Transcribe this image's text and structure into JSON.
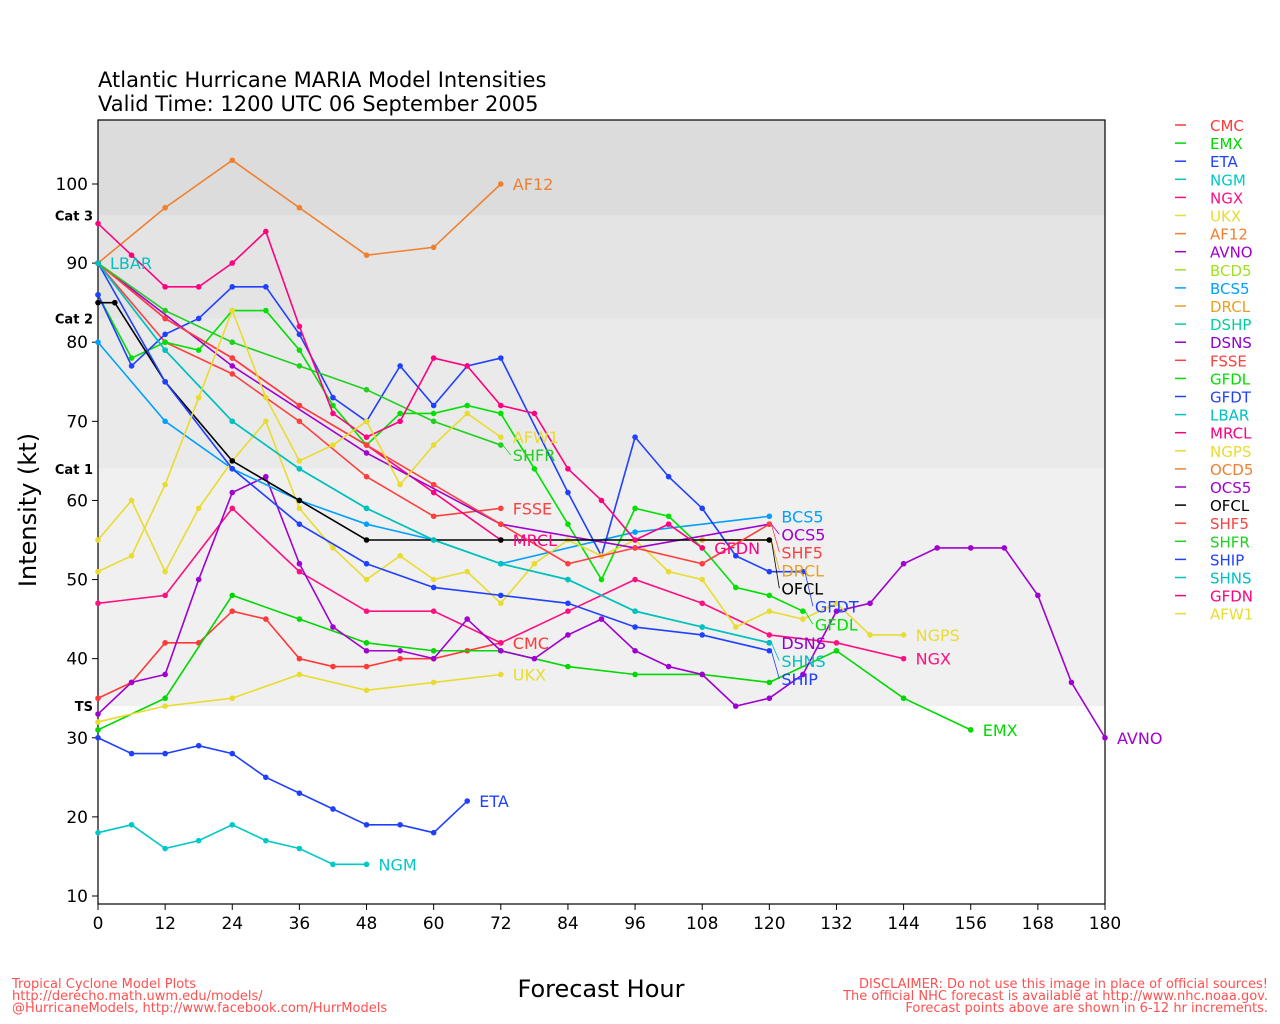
{
  "chart_data": {
    "type": "line",
    "title": "Atlantic Hurricane MARIA Model Intensities",
    "subtitle": "Valid Time: 1200 UTC 06 September 2005",
    "xlabel": "Forecast Hour",
    "ylabel": "Intensity (kt)",
    "xlim": [
      0,
      180
    ],
    "ylim": [
      10,
      108
    ],
    "xticks": [
      0,
      12,
      24,
      36,
      48,
      60,
      72,
      84,
      96,
      108,
      120,
      132,
      144,
      156,
      168,
      180
    ],
    "yticks": [
      10,
      20,
      30,
      40,
      50,
      60,
      70,
      80,
      90,
      100
    ],
    "categories": [
      {
        "label": "Cat 3",
        "min": 96,
        "color": "#dcdcdc"
      },
      {
        "label": "Cat 2",
        "min": 83,
        "max": 96,
        "color": "#e4e4e4"
      },
      {
        "label": "Cat 1",
        "min": 64,
        "max": 83,
        "color": "#eaeaea"
      },
      {
        "label": "TS",
        "min": 34,
        "max": 64,
        "color": "#f0f0f0"
      }
    ],
    "legend_position": "right",
    "series": [
      {
        "name": "CMC",
        "color": "#ff3838",
        "label": true,
        "x": [
          0,
          6,
          12,
          18,
          24,
          30,
          36,
          42,
          48,
          54,
          60,
          66,
          72
        ],
        "y": [
          35,
          37,
          42,
          42,
          46,
          45,
          40,
          39,
          39,
          40,
          40,
          41,
          42
        ]
      },
      {
        "name": "EMX",
        "color": "#00d800",
        "label": true,
        "x": [
          0,
          12,
          24,
          36,
          48,
          60,
          72,
          84,
          96,
          108,
          120,
          132,
          144,
          156
        ],
        "y": [
          31,
          35,
          48,
          45,
          42,
          41,
          41,
          39,
          38,
          38,
          37,
          41,
          35,
          31
        ]
      },
      {
        "name": "ETA",
        "color": "#2040ff",
        "label": true,
        "x": [
          0,
          6,
          12,
          18,
          24,
          30,
          36,
          42,
          48,
          54,
          60,
          66
        ],
        "y": [
          30,
          28,
          28,
          29,
          28,
          25,
          23,
          21,
          19,
          19,
          18,
          22
        ]
      },
      {
        "name": "NGM",
        "color": "#00c8c8",
        "label": true,
        "x": [
          0,
          6,
          12,
          18,
          24,
          30,
          36,
          42,
          48
        ],
        "y": [
          18,
          19,
          16,
          17,
          19,
          17,
          16,
          14,
          14
        ]
      },
      {
        "name": "NGX",
        "color": "#ff1080",
        "label": true,
        "x": [
          0,
          12,
          24,
          36,
          48,
          60,
          72,
          84,
          96,
          108,
          120,
          132,
          144
        ],
        "y": [
          47,
          48,
          59,
          51,
          46,
          46,
          42,
          46,
          50,
          47,
          43,
          42,
          40
        ]
      },
      {
        "name": "UKX",
        "color": "#e8dc30",
        "label": true,
        "x": [
          0,
          12,
          24,
          36,
          48,
          60,
          72
        ],
        "y": [
          32,
          34,
          35,
          38,
          36,
          37,
          38
        ]
      },
      {
        "name": "AF12",
        "color": "#f08030",
        "label": true,
        "x": [
          0,
          12,
          24,
          36,
          48,
          60,
          72
        ],
        "y": [
          90,
          97,
          103,
          97,
          91,
          92,
          100
        ]
      },
      {
        "name": "AVNO",
        "color": "#a000d0",
        "label": true,
        "x": [
          0,
          6,
          12,
          18,
          24,
          30,
          36,
          42,
          48,
          54,
          60,
          66,
          72,
          78,
          84,
          90,
          96,
          102,
          108,
          114,
          120,
          126,
          132,
          138,
          144,
          150,
          156,
          162,
          168,
          174,
          180
        ],
        "y": [
          33,
          37,
          38,
          50,
          61,
          63,
          52,
          44,
          41,
          41,
          40,
          45,
          41,
          40,
          43,
          45,
          41,
          39,
          38,
          34,
          35,
          38,
          46,
          47,
          52,
          54,
          54,
          54,
          48,
          37,
          30
        ]
      },
      {
        "name": "BCD5",
        "color": "#a0e020",
        "label": false,
        "x": [],
        "y": []
      },
      {
        "name": "BCS5",
        "color": "#00a0ff",
        "label": true,
        "x": [
          0,
          12,
          24,
          36,
          48,
          60,
          72,
          96,
          120
        ],
        "y": [
          80,
          70,
          64,
          60,
          57,
          55,
          52,
          56,
          58
        ]
      },
      {
        "name": "DRCL",
        "color": "#e8a020",
        "label": true,
        "x": [
          108,
          120
        ],
        "y": [
          55,
          55
        ]
      },
      {
        "name": "DSHP",
        "color": "#00d0a0",
        "label": false,
        "x": [
          0,
          12,
          24,
          36,
          48,
          60,
          72,
          84,
          96,
          108,
          120
        ],
        "y": [
          90,
          79,
          70,
          64,
          59,
          55,
          52,
          50,
          46,
          44,
          42
        ]
      },
      {
        "name": "DSNS",
        "color": "#9000d0",
        "label": true,
        "x": [
          120
        ],
        "y": [
          42
        ]
      },
      {
        "name": "FSSE",
        "color": "#ff4040",
        "label": true,
        "x": [
          0,
          12,
          24,
          36,
          48,
          60,
          72
        ],
        "y": [
          90,
          80,
          76,
          70,
          63,
          58,
          59
        ]
      },
      {
        "name": "GFDL",
        "color": "#00e000",
        "label": true,
        "x": [
          0,
          6,
          12,
          18,
          24,
          30,
          36,
          42,
          48,
          54,
          60,
          66,
          72,
          78,
          84,
          90,
          96,
          102,
          108,
          114,
          120,
          126
        ],
        "y": [
          86,
          78,
          80,
          79,
          84,
          84,
          79,
          72,
          67,
          71,
          71,
          72,
          71,
          64,
          57,
          50,
          59,
          58,
          54,
          49,
          48,
          46
        ]
      },
      {
        "name": "GFDT",
        "color": "#2040ff",
        "label": true,
        "x": [
          0,
          6,
          12,
          18,
          24,
          30,
          36,
          42,
          48,
          54,
          60,
          66,
          72,
          84,
          90,
          96,
          102,
          108,
          114,
          120,
          126
        ],
        "y": [
          86,
          77,
          81,
          83,
          87,
          87,
          81,
          73,
          70,
          77,
          72,
          77,
          78,
          61,
          53,
          68,
          63,
          59,
          53,
          51,
          51
        ]
      },
      {
        "name": "LBAR",
        "color": "#00c0c0",
        "label": true,
        "x": [
          0
        ],
        "y": [
          90
        ]
      },
      {
        "name": "MRCL",
        "color": "#ff0080",
        "label": true,
        "x": [
          0,
          12,
          24,
          36,
          48,
          60,
          72
        ],
        "y": [
          90,
          83,
          78,
          72,
          67,
          61,
          55
        ]
      },
      {
        "name": "NGPS",
        "color": "#e8dc30",
        "label": true,
        "x": [
          0,
          6,
          12,
          18,
          24,
          30,
          36,
          42,
          48,
          54,
          60,
          66,
          72,
          78,
          84,
          90,
          96,
          102,
          108,
          114,
          120,
          126,
          132,
          138,
          144
        ],
        "y": [
          55,
          60,
          51,
          59,
          65,
          70,
          59,
          54,
          50,
          53,
          50,
          51,
          47,
          52,
          55,
          53,
          55,
          51,
          50,
          44,
          46,
          45,
          47,
          43,
          43
        ]
      },
      {
        "name": "OCD5",
        "color": "#f08030",
        "label": false,
        "x": [],
        "y": []
      },
      {
        "name": "OCS5",
        "color": "#a000d0",
        "label": true,
        "x": [
          0,
          24,
          48,
          72,
          96,
          120
        ],
        "y": [
          90,
          77,
          66,
          57,
          54,
          57
        ]
      },
      {
        "name": "OFCL",
        "color": "#000000",
        "label": true,
        "x": [
          0,
          3,
          12,
          24,
          36,
          48,
          72,
          120
        ],
        "y": [
          85,
          85,
          75,
          65,
          60,
          55,
          55,
          55
        ]
      },
      {
        "name": "SHF5",
        "color": "#ff4040",
        "label": true,
        "x": [
          0,
          12,
          24,
          36,
          48,
          60,
          72,
          84,
          96,
          108,
          120
        ],
        "y": [
          90,
          83,
          78,
          72,
          67,
          62,
          57,
          52,
          54,
          52,
          57
        ]
      },
      {
        "name": "SHFR",
        "color": "#20d020",
        "label": true,
        "x": [
          0,
          12,
          24,
          36,
          48,
          60,
          72
        ],
        "y": [
          90,
          84,
          80,
          77,
          74,
          70,
          67
        ]
      },
      {
        "name": "SHIP",
        "color": "#2040ff",
        "label": true,
        "x": [
          0,
          12,
          24,
          36,
          48,
          60,
          72,
          84,
          96,
          108,
          120
        ],
        "y": [
          90,
          75,
          64,
          57,
          52,
          49,
          48,
          47,
          44,
          43,
          41
        ]
      },
      {
        "name": "SHNS",
        "color": "#00c0c0",
        "label": true,
        "x": [
          0,
          12,
          24,
          36,
          48,
          60,
          72,
          84,
          96,
          108,
          120
        ],
        "y": [
          90,
          79,
          70,
          64,
          59,
          55,
          52,
          50,
          46,
          44,
          42
        ]
      },
      {
        "name": "GFDN",
        "color": "#ff0080",
        "label": true,
        "x": [
          0,
          6,
          12,
          18,
          24,
          30,
          36,
          42,
          48,
          54,
          60,
          66,
          72,
          78,
          84,
          90,
          96,
          102,
          108
        ],
        "y": [
          95,
          91,
          87,
          87,
          90,
          94,
          82,
          71,
          68,
          70,
          78,
          77,
          72,
          71,
          64,
          60,
          55,
          57,
          54
        ]
      },
      {
        "name": "AFW1",
        "color": "#e8dc30",
        "label": true,
        "x": [
          0,
          6,
          12,
          18,
          24,
          30,
          36,
          42,
          48,
          54,
          60,
          66,
          72
        ],
        "y": [
          51,
          53,
          62,
          73,
          84,
          73,
          65,
          67,
          70,
          62,
          67,
          71,
          68
        ]
      }
    ]
  },
  "footer": {
    "left": [
      "Tropical Cyclone Model Plots",
      "http://derecho.math.uwm.edu/models/",
      "@HurricaneModels, http://www.facebook.com/HurrModels"
    ],
    "right": [
      "DISCLAIMER: Do not use this image in place of official sources!",
      "The official NHC forecast is available at http://www.nhc.noaa.gov.",
      "Forecast points above are shown in 6-12 hr increments."
    ]
  }
}
